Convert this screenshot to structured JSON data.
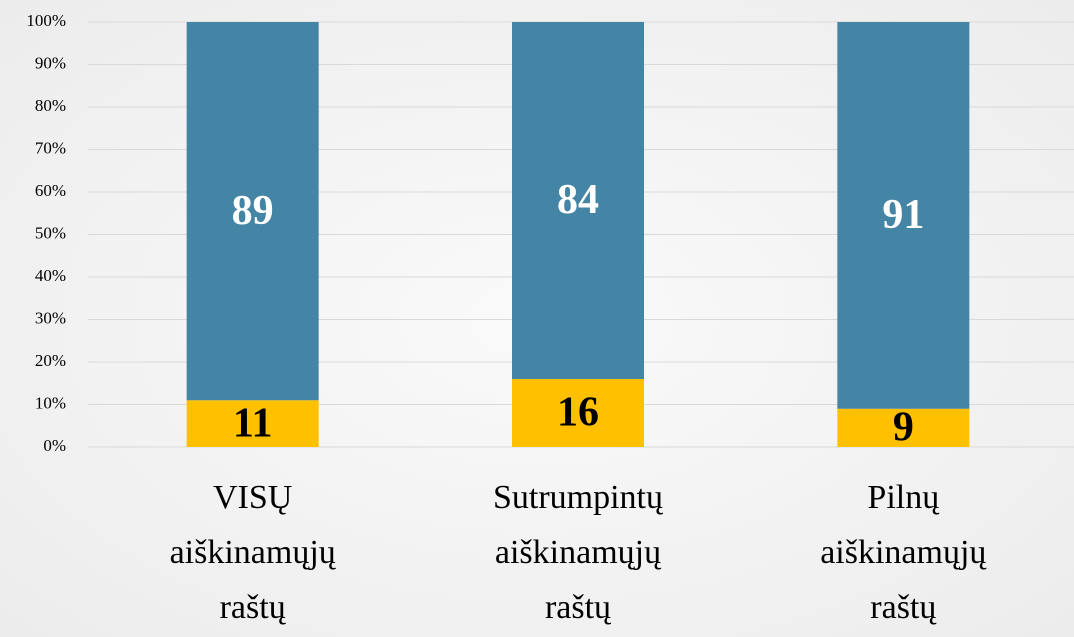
{
  "chart_data": {
    "type": "stacked_bar",
    "categories": [
      "VISŲ aiškinamųjų raštų",
      "Sutrumpintų aiškinamųjų raštų",
      "Pilnų aiškinamųjų raštų"
    ],
    "series": [
      {
        "color": "#ffc000",
        "values": [
          11,
          16,
          9
        ],
        "label_color": "#000000"
      },
      {
        "color": "#4484a4",
        "values": [
          89,
          84,
          91
        ],
        "label_color": "#ffffff"
      }
    ],
    "ylim": [
      0,
      100
    ],
    "yticks": [
      {
        "value": 0,
        "label": "0%"
      },
      {
        "value": 10,
        "label": "10%"
      },
      {
        "value": 20,
        "label": "20%"
      },
      {
        "value": 30,
        "label": "30%"
      },
      {
        "value": 40,
        "label": "40%"
      },
      {
        "value": 50,
        "label": "50%"
      },
      {
        "value": 60,
        "label": "60%"
      },
      {
        "value": 70,
        "label": "70%"
      },
      {
        "value": 80,
        "label": "80%"
      },
      {
        "value": 90,
        "label": "90%"
      },
      {
        "value": 100,
        "label": "100%"
      }
    ],
    "grid": true
  }
}
